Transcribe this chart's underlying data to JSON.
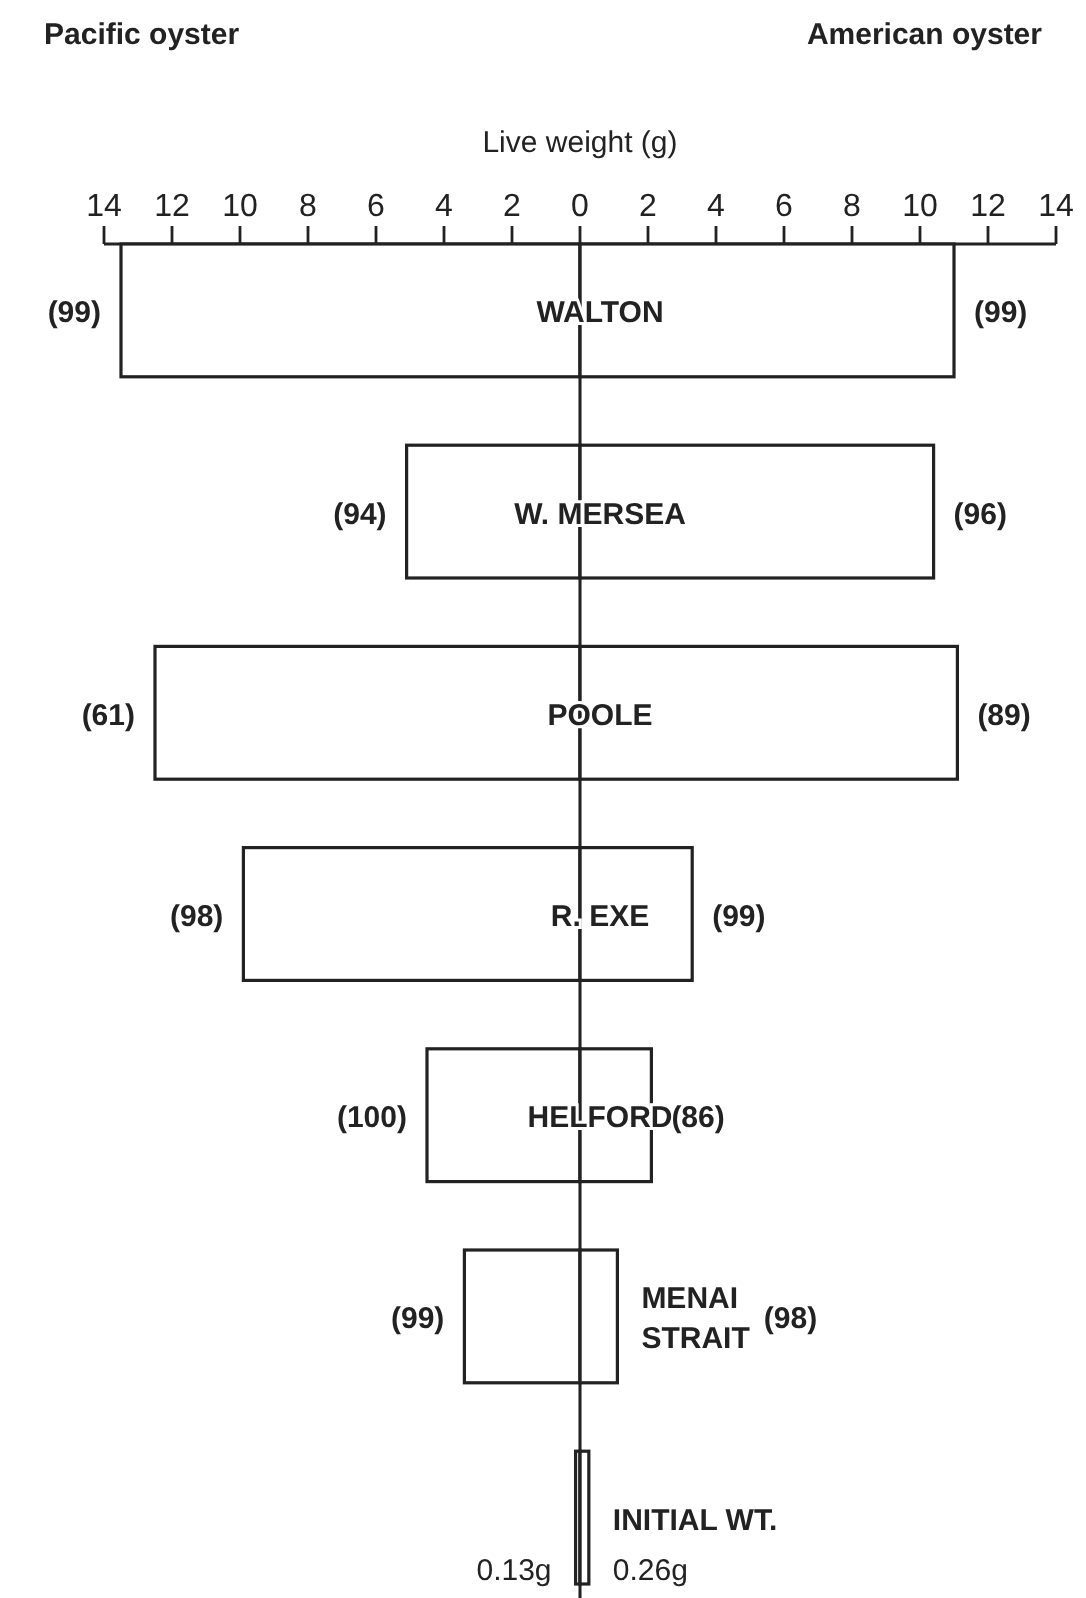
{
  "chart_data": {
    "type": "bar",
    "orientation": "horizontal",
    "xlabel": "Live weight (g)",
    "categories": [
      "WALTON",
      "W. MERSEA",
      "POOLE",
      "R. EXE",
      "HELFORD",
      "MENAI STRAIT",
      "INITIAL WT."
    ],
    "xlim": [
      -14,
      14
    ],
    "xticks": [
      {
        "value": -14,
        "label": "14"
      },
      {
        "value": -12,
        "label": "12"
      },
      {
        "value": -10,
        "label": "10"
      },
      {
        "value": -8,
        "label": "8"
      },
      {
        "value": -6,
        "label": "6"
      },
      {
        "value": -4,
        "label": "4"
      },
      {
        "value": -2,
        "label": "2"
      },
      0,
      2,
      4,
      6,
      8,
      10,
      12,
      14
    ],
    "series": [
      {
        "color": "#222222",
        "values": [
          13.5,
          5.1,
          12.5,
          9.9,
          4.5,
          3.4,
          0.13
        ],
        "base": [
          -13.5,
          -5.1,
          -12.5,
          -9.9,
          -4.5,
          -3.4,
          -0.13
        ],
        "value_labels": [
          null,
          null,
          null,
          null,
          null,
          null,
          "0.13g"
        ]
      },
      {
        "color": "#222222",
        "values": [
          11.0,
          10.4,
          11.1,
          3.3,
          2.1,
          1.1,
          0.26
        ],
        "value_labels": [
          null,
          null,
          null,
          null,
          null,
          null,
          "0.26g"
        ]
      }
    ],
    "annotations": [
      "Pacific oyster",
      "American oyster",
      {
        "text": "(99)",
        "x": -13.5,
        "y": "WALTON"
      },
      {
        "text": "(99)",
        "x": 11.0,
        "y": "WALTON"
      },
      {
        "text": "(94)",
        "x": -5.1,
        "y": "W. MERSEA"
      },
      {
        "text": "(96)",
        "x": 10.4,
        "y": "W. MERSEA"
      },
      {
        "text": "(61)",
        "x": -12.5,
        "y": "POOLE"
      },
      {
        "text": "(89)",
        "x": 11.1,
        "y": "POOLE"
      },
      {
        "text": "(98)",
        "x": -9.9,
        "y": "R. EXE"
      },
      {
        "text": "(99)",
        "x": 3.3,
        "y": "R. EXE"
      },
      {
        "text": "(100)",
        "x": -4.5,
        "y": "HELFORD"
      },
      {
        "text": "(86)",
        "x": 2.1,
        "y": "HELFORD"
      },
      {
        "text": "(99)",
        "x": -3.4,
        "y": "MENAI STRAIT"
      },
      "(98)"
    ]
  }
}
